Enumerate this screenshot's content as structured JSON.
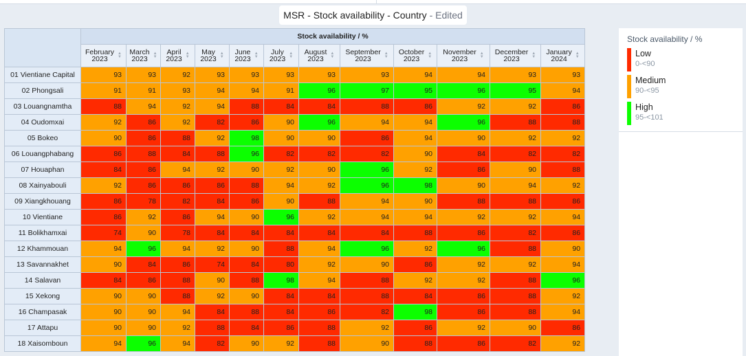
{
  "title": {
    "main": "MSR - Stock availability - Country",
    "suffix": " - Edited"
  },
  "table": {
    "group_header": "Stock availability / %",
    "months": [
      [
        "February",
        "2023"
      ],
      [
        "March",
        "2023"
      ],
      [
        "April",
        "2023"
      ],
      [
        "May",
        "2023"
      ],
      [
        "June",
        "2023"
      ],
      [
        "July",
        "2023"
      ],
      [
        "August",
        "2023"
      ],
      [
        "September",
        "2023"
      ],
      [
        "October",
        "2023"
      ],
      [
        "November",
        "2023"
      ],
      [
        "December",
        "2023"
      ],
      [
        "January",
        "2024"
      ]
    ],
    "rows": [
      {
        "label": "01 Vientiane Capital",
        "values": [
          93,
          93,
          92,
          93,
          93,
          93,
          93,
          93,
          94,
          94,
          93,
          93
        ]
      },
      {
        "label": "02 Phongsali",
        "values": [
          91,
          91,
          93,
          94,
          94,
          91,
          96,
          97,
          95,
          96,
          95,
          94
        ]
      },
      {
        "label": "03 Louangnamtha",
        "values": [
          88,
          94,
          92,
          94,
          88,
          84,
          84,
          88,
          86,
          92,
          92,
          86
        ]
      },
      {
        "label": "04 Oudomxai",
        "values": [
          92,
          86,
          92,
          82,
          86,
          90,
          96,
          94,
          94,
          96,
          88,
          88
        ]
      },
      {
        "label": "05 Bokeo",
        "values": [
          90,
          86,
          88,
          92,
          98,
          90,
          90,
          86,
          94,
          90,
          92,
          92
        ]
      },
      {
        "label": "06 Louangphabang",
        "values": [
          86,
          88,
          84,
          88,
          96,
          82,
          82,
          82,
          90,
          84,
          82,
          82
        ]
      },
      {
        "label": "07 Houaphan",
        "values": [
          84,
          86,
          94,
          92,
          90,
          92,
          90,
          96,
          92,
          86,
          90,
          88
        ]
      },
      {
        "label": "08 Xainyabouli",
        "values": [
          92,
          86,
          86,
          86,
          88,
          94,
          92,
          96,
          98,
          90,
          94,
          92
        ]
      },
      {
        "label": "09 Xiangkhouang",
        "values": [
          86,
          78,
          82,
          84,
          86,
          90,
          88,
          94,
          90,
          88,
          88,
          86
        ]
      },
      {
        "label": "10 Vientiane",
        "values": [
          86,
          92,
          86,
          94,
          90,
          96,
          92,
          94,
          94,
          92,
          92,
          94
        ]
      },
      {
        "label": "11 Bolikhamxai",
        "values": [
          74,
          90,
          78,
          84,
          84,
          84,
          84,
          84,
          88,
          86,
          82,
          86
        ]
      },
      {
        "label": "12 Khammouan",
        "values": [
          94,
          96,
          94,
          92,
          90,
          88,
          94,
          96,
          92,
          96,
          88,
          90
        ]
      },
      {
        "label": "13 Savannakhet",
        "values": [
          90,
          84,
          86,
          74,
          84,
          80,
          92,
          90,
          86,
          92,
          92,
          94
        ]
      },
      {
        "label": "14 Salavan",
        "values": [
          84,
          86,
          88,
          90,
          88,
          98,
          94,
          88,
          92,
          92,
          88,
          96
        ]
      },
      {
        "label": "15 Xekong",
        "values": [
          90,
          90,
          88,
          92,
          90,
          84,
          84,
          88,
          84,
          86,
          88,
          92
        ]
      },
      {
        "label": "16 Champasak",
        "values": [
          90,
          90,
          94,
          84,
          88,
          84,
          86,
          82,
          98,
          86,
          88,
          94
        ]
      },
      {
        "label": "17 Attapu",
        "values": [
          90,
          90,
          92,
          88,
          84,
          86,
          88,
          92,
          86,
          92,
          90,
          86
        ]
      },
      {
        "label": "18 Xaisomboun",
        "values": [
          94,
          96,
          94,
          82,
          90,
          92,
          88,
          90,
          88,
          86,
          82,
          92
        ]
      }
    ]
  },
  "legend": {
    "title": "Stock availability / %",
    "items": [
      {
        "label": "Low",
        "range": "0-<90",
        "color": "#ff2a00",
        "min": 0,
        "max": 90
      },
      {
        "label": "Medium",
        "range": "90-<95",
        "color": "#ffa100",
        "min": 90,
        "max": 95
      },
      {
        "label": "High",
        "range": "95-<101",
        "color": "#0cff00",
        "min": 95,
        "max": 101
      }
    ]
  }
}
